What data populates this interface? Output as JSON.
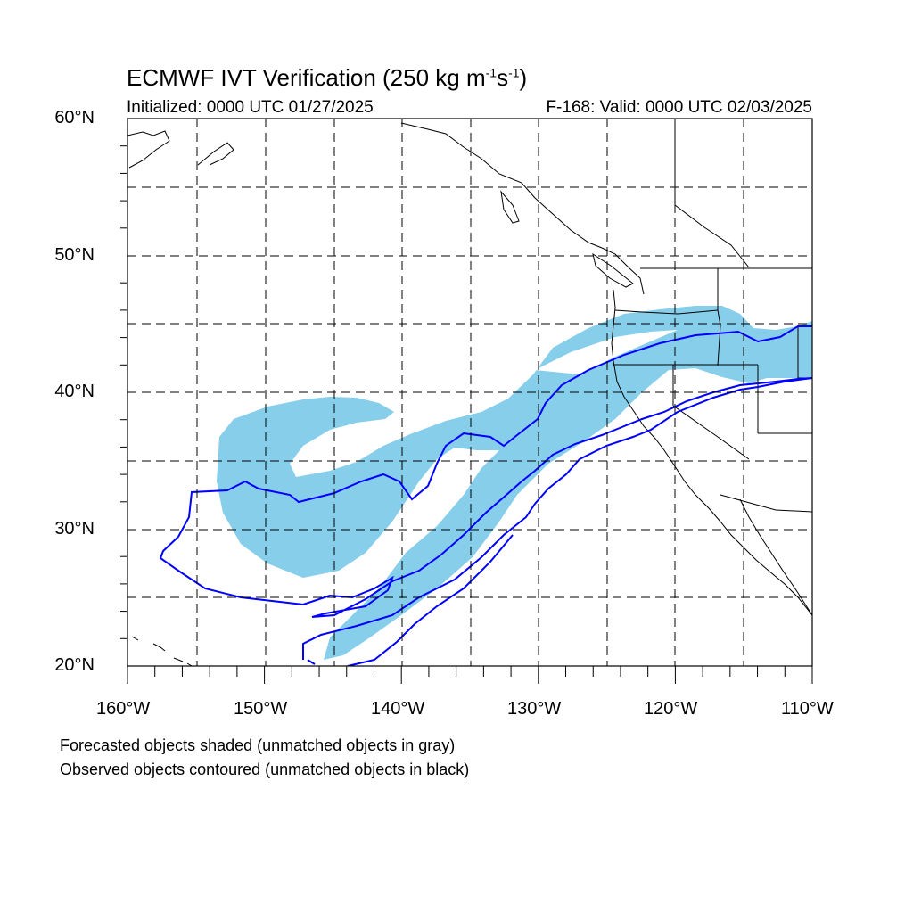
{
  "header": {
    "title_main": "ECMWF IVT Verification (250 kg m",
    "title_sup1": "-1",
    "title_mid": "s",
    "title_sup2": "-1",
    "title_end": ")",
    "initialized": "Initialized: 0000 UTC 01/27/2025",
    "valid": "F-168: Valid: 0000 UTC 02/03/2025"
  },
  "axes": {
    "lat_labels": [
      "60°N",
      "50°N",
      "40°N",
      "30°N",
      "20°N"
    ],
    "lon_labels": [
      "160°W",
      "150°W",
      "140°W",
      "130°W",
      "120°W",
      "110°W"
    ],
    "lat_range": [
      20,
      60
    ],
    "lon_range": [
      -160,
      -110
    ],
    "grid": "dashed"
  },
  "legend": {
    "line1": "Forecasted objects shaded (unmatched objects in gray)",
    "line2": "Observed objects contoured (unmatched objects in black)"
  },
  "colors": {
    "forecast_fill": "#87ceeb",
    "observed_contour": "#0000ff",
    "coastline": "#000000",
    "grid": "#000000"
  }
}
